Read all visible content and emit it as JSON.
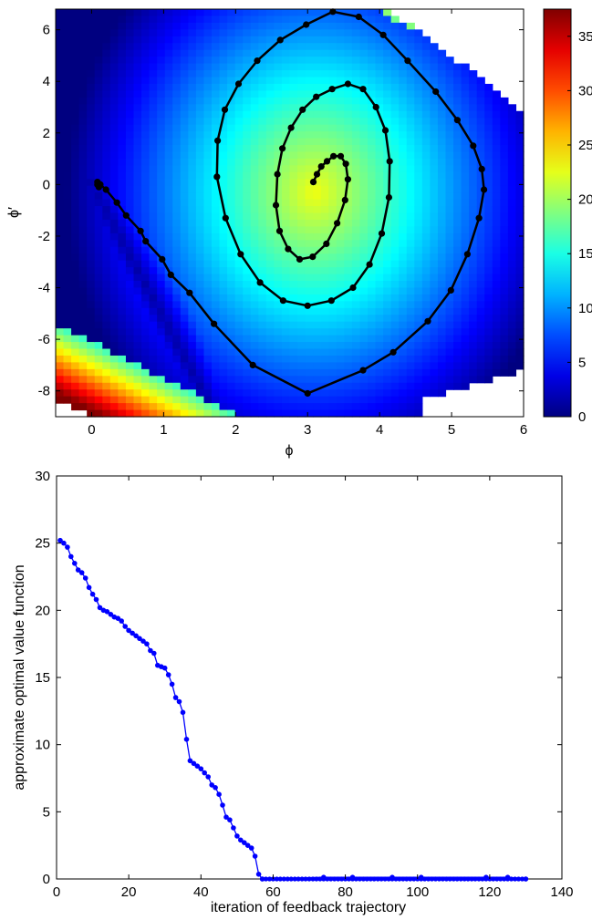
{
  "chart_data": [
    {
      "type": "heatmap",
      "title": "",
      "xlabel": "ϕ",
      "ylabel": "ϕ′",
      "xlim": [
        -0.5,
        6
      ],
      "ylim": [
        -9,
        6.8
      ],
      "x_ticks": [
        0,
        1,
        2,
        3,
        4,
        5,
        6
      ],
      "y_ticks": [
        -8,
        -6,
        -4,
        -2,
        0,
        2,
        4,
        6
      ],
      "colorbar": {
        "range": [
          0,
          37.5
        ],
        "ticks": [
          0,
          5,
          10,
          15,
          20,
          25,
          30,
          35
        ],
        "colormap": "jet"
      },
      "grid": false,
      "trajectory": {
        "color": "#000000",
        "x": [
          3.08,
          3.13,
          3.19,
          3.27,
          3.36,
          3.46,
          3.53,
          3.56,
          3.52,
          3.41,
          3.26,
          3.07,
          2.89,
          2.73,
          2.61,
          2.56,
          2.58,
          2.65,
          2.77,
          2.93,
          3.12,
          3.34,
          3.56,
          3.77,
          3.95,
          4.08,
          4.14,
          4.13,
          4.03,
          3.86,
          3.63,
          3.33,
          3.0,
          2.66,
          2.34,
          2.07,
          1.86,
          1.74,
          1.75,
          1.85,
          2.04,
          2.3,
          2.62,
          2.98,
          3.35,
          3.71,
          4.05,
          4.39,
          4.78,
          5.08,
          5.3,
          5.42,
          5.45,
          5.38,
          5.22,
          4.99,
          4.67,
          4.19,
          3.77,
          3.0,
          2.24,
          1.7,
          1.36,
          1.1,
          0.98,
          0.75,
          0.68,
          0.48,
          0.35,
          0.2,
          0.12,
          0.08,
          0.08,
          0.1,
          0.12
        ],
        "y": [
          0.1,
          0.4,
          0.7,
          0.9,
          1.1,
          1.1,
          0.8,
          0.2,
          -0.6,
          -1.5,
          -2.3,
          -2.8,
          -2.9,
          -2.5,
          -1.8,
          -0.8,
          0.4,
          1.4,
          2.2,
          2.9,
          3.4,
          3.7,
          3.9,
          3.7,
          3.0,
          2.1,
          0.9,
          -0.5,
          -1.9,
          -3.1,
          -4.0,
          -4.5,
          -4.7,
          -4.5,
          -3.8,
          -2.7,
          -1.3,
          0.3,
          1.7,
          2.9,
          3.9,
          4.8,
          5.6,
          6.2,
          6.7,
          6.5,
          5.8,
          4.8,
          3.6,
          2.5,
          1.5,
          0.6,
          -0.2,
          -1.3,
          -2.7,
          -4.1,
          -5.3,
          -6.5,
          -7.2,
          -8.1,
          -7.0,
          -5.4,
          -4.2,
          -3.5,
          -2.9,
          -2.2,
          -1.8,
          -1.2,
          -0.7,
          -0.2,
          0.0,
          0.1,
          0.0,
          -0.1,
          0.0
        ]
      }
    },
    {
      "type": "line",
      "title": "",
      "xlabel": "iteration of feedback trajectory",
      "ylabel": "approximate optimal value function",
      "xlim": [
        0,
        140
      ],
      "ylim": [
        0,
        30
      ],
      "x_ticks": [
        0,
        20,
        40,
        60,
        80,
        100,
        120,
        140
      ],
      "y_ticks": [
        0,
        5,
        10,
        15,
        20,
        25,
        30
      ],
      "grid": false,
      "series": [
        {
          "color": "#0000ff",
          "x": [
            1,
            2,
            3,
            4,
            5,
            6,
            7,
            8,
            9,
            10,
            11,
            12,
            13,
            14,
            15,
            16,
            17,
            18,
            19,
            20,
            21,
            22,
            23,
            24,
            25,
            26,
            27,
            28,
            29,
            30,
            31,
            32,
            33,
            34,
            35,
            36,
            37,
            38,
            39,
            40,
            41,
            42,
            43,
            44,
            45,
            46,
            47,
            48,
            49,
            50,
            51,
            52,
            53,
            54,
            55,
            56,
            57,
            74,
            82,
            93,
            101,
            119,
            125,
            130
          ],
          "values": [
            25.2,
            25.0,
            24.7,
            24.0,
            23.5,
            23.0,
            22.8,
            22.4,
            21.7,
            21.2,
            20.8,
            20.2,
            20.0,
            19.9,
            19.7,
            19.5,
            19.4,
            19.2,
            18.8,
            18.5,
            18.3,
            18.1,
            17.9,
            17.7,
            17.5,
            17.0,
            16.8,
            15.9,
            15.8,
            15.7,
            15.2,
            14.5,
            13.5,
            13.2,
            12.4,
            10.4,
            8.8,
            8.6,
            8.4,
            8.2,
            7.9,
            7.6,
            7.0,
            6.8,
            6.3,
            5.5,
            4.6,
            4.4,
            3.8,
            3.2,
            2.9,
            2.7,
            2.5,
            2.3,
            1.7,
            0.35,
            0.0,
            0.12,
            0.12,
            0.12,
            0.12,
            0.12,
            0.12,
            0.0
          ]
        }
      ]
    }
  ]
}
